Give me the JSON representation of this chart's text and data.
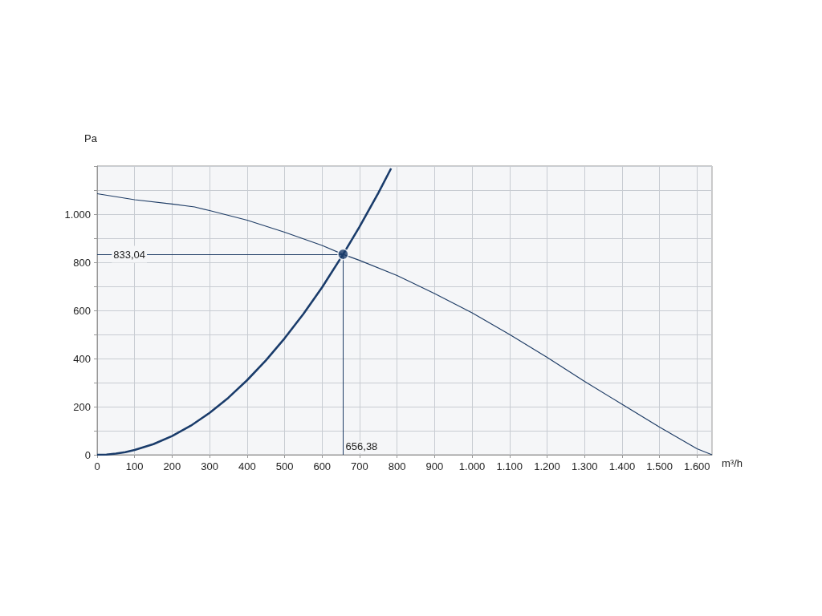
{
  "chart_data": {
    "type": "line",
    "xlabel": "m³/h",
    "ylabel": "Pa",
    "xlim": [
      0,
      1640
    ],
    "xticks": [
      0,
      100,
      200,
      300,
      400,
      500,
      600,
      700,
      800,
      900,
      {
        "value": 1000,
        "label": "1.000"
      },
      {
        "value": 1100,
        "label": "1.100"
      },
      {
        "value": 1200,
        "label": "1.200"
      },
      {
        "value": 1300,
        "label": "1.300"
      },
      {
        "value": 1400,
        "label": "1.400"
      },
      {
        "value": 1500,
        "label": "1.500"
      },
      {
        "value": 1600,
        "label": "1.600"
      }
    ],
    "ylim": [
      0,
      1200
    ],
    "yticks": [
      0,
      {
        "value": 100,
        "label": null
      },
      200,
      {
        "value": 300,
        "label": null
      },
      400,
      {
        "value": 500,
        "label": null
      },
      600,
      {
        "value": 700,
        "label": null
      },
      800,
      {
        "value": 900,
        "label": null
      },
      {
        "value": 1000,
        "label": "1.000"
      },
      {
        "value": 1100,
        "label": null
      },
      {
        "value": 1200,
        "label": null
      }
    ],
    "grid": true,
    "series": [
      {
        "color": "#1f3d66",
        "x": [
          0,
          100,
          200,
          260,
          300,
          400,
          500,
          600,
          656,
          700,
          800,
          900,
          1000,
          1100,
          1200,
          1300,
          1400,
          1500,
          1600,
          1640
        ],
        "values": [
          1085,
          1060,
          1042,
          1030,
          1015,
          975,
          925,
          870,
          833,
          808,
          745,
          670,
          590,
          500,
          405,
          305,
          210,
          115,
          25,
          0
        ]
      },
      {
        "color": "#1a3c6b",
        "x": [
          0,
          25,
          50,
          75,
          100,
          150,
          200,
          250,
          300,
          350,
          400,
          450,
          500,
          550,
          600,
          656,
          700,
          750,
          784
        ],
        "values": [
          0,
          1,
          5,
          11,
          20,
          44,
          78,
          121,
          174,
          237,
          310,
          392,
          484,
          585,
          696,
          833,
          948,
          1088,
          1190
        ]
      },
      {
        "type": "scatter",
        "color": "#1a3c6b",
        "marker": "circle",
        "x": [
          656
        ],
        "values": [
          833
        ]
      }
    ],
    "ref_lines": [
      {
        "axis": "y",
        "value": 833.04,
        "label": "833,04",
        "color": "#1f3d66"
      },
      {
        "axis": "x",
        "value": 656.38,
        "label": "656,38",
        "color": "#1f3d66"
      }
    ]
  }
}
